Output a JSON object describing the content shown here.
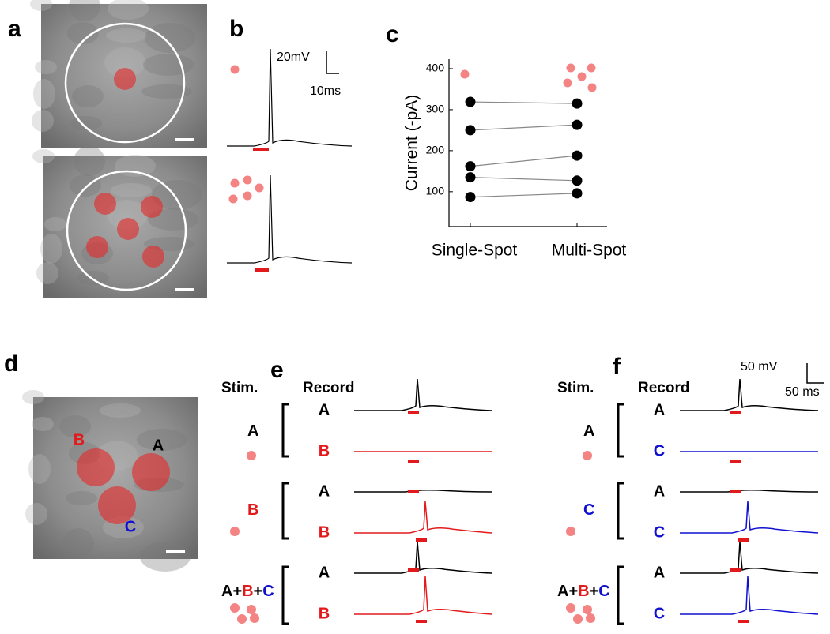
{
  "panel_labels": [
    "a",
    "b",
    "c",
    "d",
    "e",
    "f"
  ],
  "b": {
    "scale_v": "20mV",
    "scale_t": "10ms"
  },
  "chart_data": {
    "type": "scatter",
    "y_label": "Current (-pA)",
    "categories": [
      "Single-Spot",
      "Multi-Spot"
    ],
    "series": [
      {
        "color": "#000000",
        "values": [
          319,
          315
        ]
      },
      {
        "color": "#000000",
        "values": [
          250,
          263
        ]
      },
      {
        "color": "#000000",
        "values": [
          162,
          188
        ]
      },
      {
        "color": "#000000",
        "values": [
          135,
          127
        ]
      },
      {
        "color": "#000000",
        "values": [
          87,
          96
        ]
      }
    ],
    "ylim": [
      15,
      423
    ],
    "yticks": [
      100,
      200,
      300,
      400
    ]
  },
  "d": {
    "labels": [
      "B",
      "A",
      "C"
    ]
  },
  "e": {
    "stim_header": "Stim.",
    "record_header": "Record",
    "stim": [
      [
        "A"
      ],
      [
        "B"
      ],
      [
        "A",
        "+",
        "B",
        "+",
        "C"
      ]
    ],
    "record": [
      [
        "A",
        "B"
      ],
      [
        "A",
        "B"
      ],
      [
        "A",
        "B"
      ]
    ]
  },
  "f": {
    "stim_header": "Stim.",
    "record_header": "Record",
    "scale_v": "50 mV",
    "scale_t": "50 ms",
    "stim": [
      [
        "A"
      ],
      [
        "C"
      ],
      [
        "A",
        "+",
        "B",
        "+",
        "C"
      ]
    ],
    "record": [
      [
        "A",
        "C"
      ],
      [
        "A",
        "C"
      ],
      [
        "A",
        "C"
      ]
    ]
  }
}
